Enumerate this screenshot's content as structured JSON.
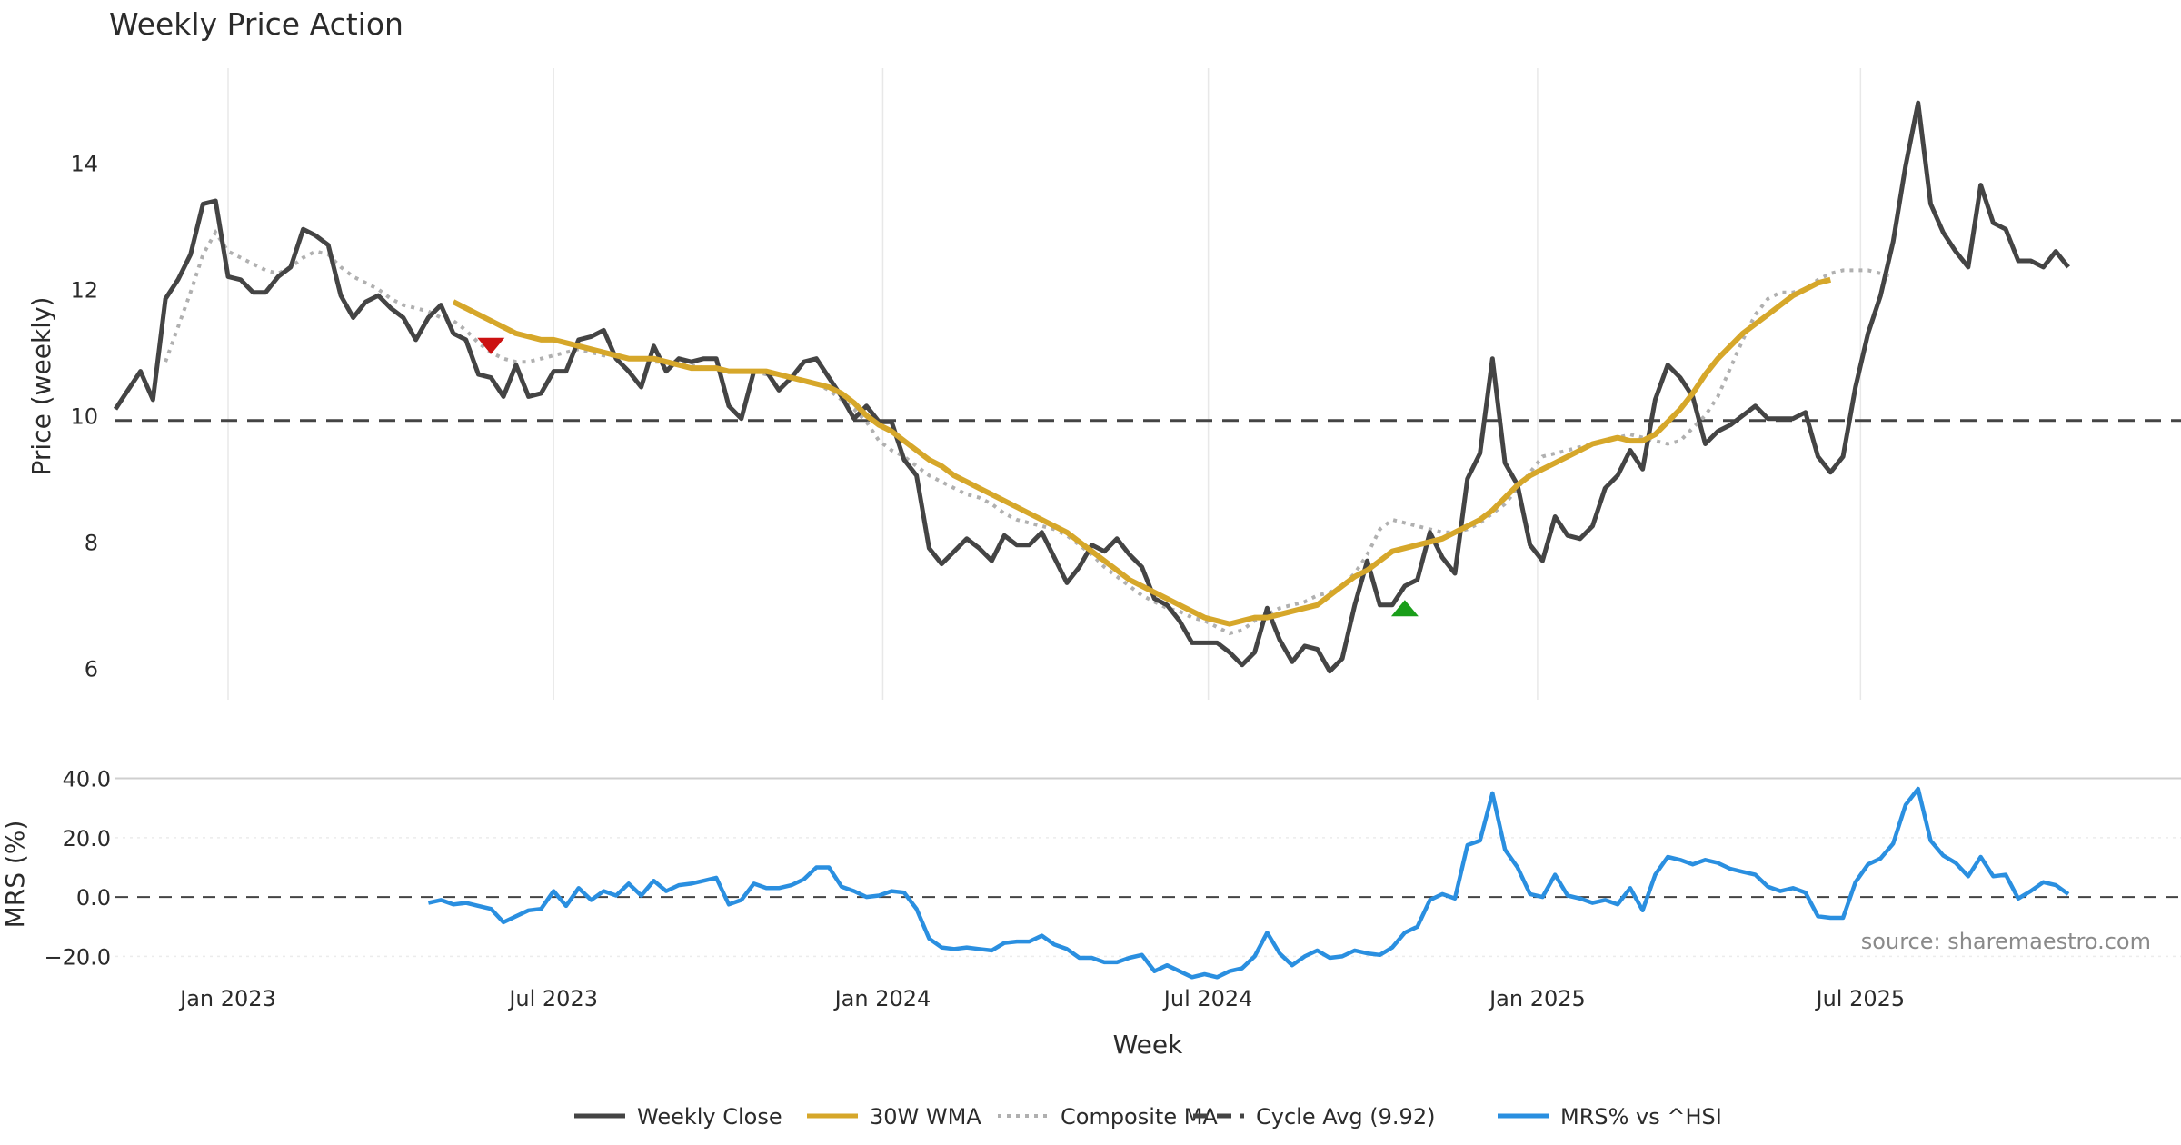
{
  "chart_data": {
    "type": "line",
    "title": "Weekly Price Action",
    "xlabel": "Week",
    "source": "source: sharemaestro.com",
    "x_ticks": [
      {
        "label": "Jan 2023",
        "week": 12
      },
      {
        "label": "Jul 2023",
        "week": 38
      },
      {
        "label": "Jan 2024",
        "week": 64.3
      },
      {
        "label": "Jul 2024",
        "week": 90.3
      },
      {
        "label": "Jan 2025",
        "week": 116.6
      },
      {
        "label": "Jul 2025",
        "week": 142.4
      }
    ],
    "x_range": [
      3,
      168
    ],
    "price_panel": {
      "ylabel": "Price (weekly)",
      "ylim": [
        5.5,
        15.5
      ],
      "yticks": [
        6,
        8,
        10,
        12,
        14
      ],
      "cycle_avg": 9.92,
      "series": {
        "weekly_close": [
          10.1,
          10.4,
          10.7,
          10.25,
          11.85,
          12.15,
          12.55,
          13.35,
          13.4,
          12.2,
          12.15,
          11.95,
          11.95,
          12.2,
          12.35,
          12.95,
          12.85,
          12.7,
          11.9,
          11.55,
          11.8,
          11.9,
          11.7,
          11.55,
          11.2,
          11.55,
          11.75,
          11.3,
          11.2,
          10.65,
          10.6,
          10.3,
          10.8,
          10.3,
          10.35,
          10.7,
          10.7,
          11.2,
          11.25,
          11.35,
          10.9,
          10.7,
          10.45,
          11.1,
          10.7,
          10.9,
          10.85,
          10.9,
          10.9,
          10.15,
          9.95,
          10.7,
          10.7,
          10.4,
          10.6,
          10.85,
          10.9,
          10.6,
          10.3,
          9.95,
          10.15,
          9.9,
          9.9,
          9.3,
          9.05,
          7.9,
          7.65,
          7.85,
          8.05,
          7.9,
          7.7,
          8.1,
          7.95,
          7.95,
          8.15,
          7.75,
          7.35,
          7.6,
          7.95,
          7.85,
          8.05,
          7.8,
          7.6,
          7.1,
          7.0,
          6.75,
          6.4,
          6.4,
          6.4,
          6.25,
          6.05,
          6.25,
          6.95,
          6.45,
          6.1,
          6.35,
          6.3,
          5.95,
          6.15,
          7.0,
          7.7,
          7.0,
          7.0,
          7.3,
          7.4,
          8.15,
          7.75,
          7.5,
          9.0,
          9.4,
          10.9,
          9.25,
          8.9,
          7.95,
          7.7,
          8.4,
          8.1,
          8.05,
          8.25,
          8.85,
          9.05,
          9.45,
          9.15,
          10.25,
          10.8,
          10.6,
          10.3,
          9.55,
          9.75,
          9.85,
          10.0,
          10.15,
          9.95,
          9.95,
          9.95,
          10.05,
          9.35,
          9.1,
          9.35,
          10.45,
          11.3,
          11.9,
          12.75,
          13.95,
          14.95,
          13.35,
          12.9,
          12.6,
          12.35,
          13.65,
          13.05,
          12.95,
          12.45,
          12.45,
          12.35,
          12.6,
          12.35
        ],
        "wma_30w": {
          "start_week": 30,
          "values": [
            11.8,
            11.7,
            11.6,
            11.5,
            11.4,
            11.3,
            11.25,
            11.2,
            11.2,
            11.15,
            11.1,
            11.05,
            11.0,
            10.95,
            10.9,
            10.9,
            10.9,
            10.85,
            10.8,
            10.75,
            10.75,
            10.75,
            10.7,
            10.7,
            10.7,
            10.7,
            10.65,
            10.6,
            10.55,
            10.5,
            10.45,
            10.35,
            10.2,
            10.0,
            9.85,
            9.75,
            9.6,
            9.45,
            9.3,
            9.2,
            9.05,
            8.95,
            8.85,
            8.75,
            8.65,
            8.55,
            8.45,
            8.35,
            8.25,
            8.15,
            8.0,
            7.85,
            7.7,
            7.55,
            7.4,
            7.3,
            7.2,
            7.1,
            7.0,
            6.9,
            6.8,
            6.75,
            6.7,
            6.75,
            6.8,
            6.8,
            6.85,
            6.9,
            6.95,
            7.0,
            7.15,
            7.3,
            7.45,
            7.55,
            7.7,
            7.85,
            7.9,
            7.95,
            8.0,
            8.05,
            8.15,
            8.25,
            8.35,
            8.5,
            8.7,
            8.9,
            9.05,
            9.15,
            9.25,
            9.35,
            9.45,
            9.55,
            9.6,
            9.65,
            9.6,
            9.6,
            9.7,
            9.9,
            10.1,
            10.35,
            10.65,
            10.9,
            11.1,
            11.3,
            11.45,
            11.6,
            11.75,
            11.9,
            12.0,
            12.1,
            12.15
          ]
        },
        "composite_ma": {
          "start_week": 7,
          "values": [
            10.85,
            11.4,
            11.95,
            12.55,
            12.9,
            12.6,
            12.5,
            12.4,
            12.3,
            12.25,
            12.35,
            12.5,
            12.6,
            12.55,
            12.35,
            12.2,
            12.1,
            12.0,
            11.85,
            11.75,
            11.7,
            11.65,
            11.55,
            11.5,
            11.35,
            11.15,
            11.0,
            10.9,
            10.85,
            10.85,
            10.9,
            10.95,
            11.0,
            11.05,
            11.0,
            10.95,
            10.95,
            10.9,
            10.9,
            10.85,
            10.85,
            10.85,
            10.8,
            10.75,
            10.75,
            10.7,
            10.7,
            10.7,
            10.65,
            10.65,
            10.6,
            10.55,
            10.5,
            10.4,
            10.25,
            10.1,
            9.9,
            9.6,
            9.45,
            9.35,
            9.2,
            9.05,
            8.95,
            8.85,
            8.75,
            8.7,
            8.6,
            8.45,
            8.35,
            8.3,
            8.25,
            8.2,
            8.1,
            7.95,
            7.8,
            7.6,
            7.45,
            7.3,
            7.15,
            7.05,
            6.95,
            6.9,
            6.8,
            6.75,
            6.65,
            6.55,
            6.6,
            6.75,
            6.85,
            6.95,
            7.0,
            7.05,
            7.15,
            7.2,
            7.3,
            7.5,
            7.8,
            8.2,
            8.35,
            8.3,
            8.25,
            8.2,
            8.15,
            8.15,
            8.2,
            8.3,
            8.45,
            8.6,
            8.85,
            9.1,
            9.35,
            9.4,
            9.45,
            9.5,
            9.55,
            9.6,
            9.65,
            9.7,
            9.65,
            9.6,
            9.55,
            9.6,
            9.8,
            10.0,
            10.3,
            10.75,
            11.2,
            11.6,
            11.85,
            11.95,
            11.95,
            12.0,
            12.15,
            12.25,
            12.3,
            12.3,
            12.3,
            12.25,
            12.2
          ]
        }
      },
      "markers": [
        {
          "type": "sell",
          "week": 33,
          "value": 11.1,
          "color": "#cc1111"
        },
        {
          "type": "buy",
          "week": 106,
          "value": 6.95,
          "color": "#1a9e1a"
        }
      ]
    },
    "mrs_panel": {
      "ylabel": "MRS (%)",
      "ylim": [
        -26,
        42
      ],
      "yticks": [
        {
          "value": 40,
          "label": "40.0"
        },
        {
          "value": 20,
          "label": "20.0"
        },
        {
          "value": 0,
          "label": "0.0"
        },
        {
          "value": -20,
          "label": "−20.0"
        }
      ],
      "start_week": 28,
      "values": [
        -2,
        -1,
        -2.5,
        -2,
        -3,
        -4,
        -8.5,
        -6.5,
        -4.5,
        -4,
        2,
        -3,
        3,
        -1,
        2,
        0.5,
        4.5,
        0.5,
        5.5,
        2,
        4,
        4.5,
        5.5,
        6.5,
        -2.5,
        -1,
        4.5,
        3,
        3,
        4,
        6,
        10,
        10,
        3.5,
        2,
        0,
        0.5,
        2,
        1.5,
        -4,
        -14,
        -17,
        -17.5,
        -17,
        -17.5,
        -18,
        -15.5,
        -15,
        -15,
        -13,
        -16,
        -17.5,
        -20.5,
        -20.5,
        -22,
        -22,
        -20.5,
        -19.5,
        -25,
        -23,
        -25,
        -27,
        -26,
        -27,
        -25,
        -24,
        -20,
        -12,
        -19,
        -23,
        -20,
        -18,
        -20.5,
        -20,
        -18,
        -19,
        -19.5,
        -17,
        -12,
        -10,
        -1,
        1,
        -0.5,
        17.5,
        19,
        35,
        16,
        10,
        1,
        0,
        7.5,
        0.5,
        -0.5,
        -2,
        -1,
        -2.5,
        3,
        -4.5,
        7.5,
        13.5,
        12.5,
        11,
        12.5,
        11.5,
        9.5,
        8.5,
        7.5,
        3.5,
        2,
        3,
        1.5,
        -6.5,
        -7,
        -7,
        5,
        11,
        13,
        18,
        31,
        36.5,
        19,
        14,
        11.5,
        7,
        13.5,
        7,
        7.5,
        -0.5,
        2,
        5,
        4,
        1
      ]
    },
    "legend": [
      {
        "label": "Weekly Close",
        "color": "#444444",
        "style": "solid"
      },
      {
        "label": "30W WMA",
        "color": "#d6a72a",
        "style": "solid"
      },
      {
        "label": "Composite MA",
        "color": "#b0b0b0",
        "style": "dotted"
      },
      {
        "label": "Cycle Avg (9.92)",
        "color": "#444444",
        "style": "dashed"
      },
      {
        "label": "MRS% vs ^HSI",
        "color": "#2a8fe0",
        "style": "solid"
      }
    ]
  }
}
